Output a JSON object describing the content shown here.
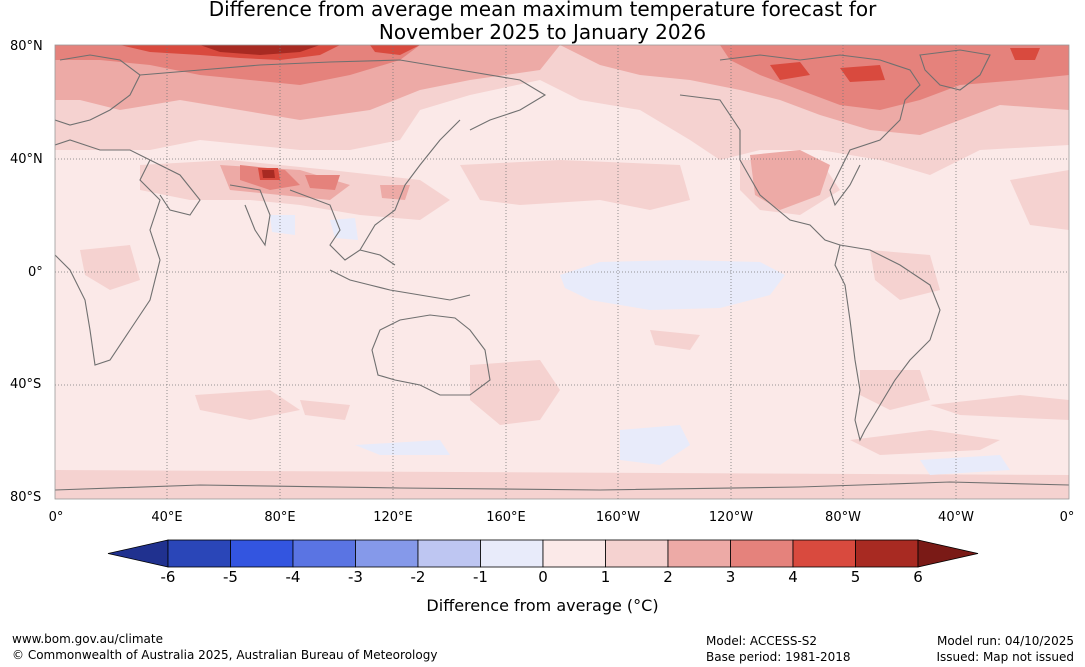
{
  "title": {
    "line1": "Difference from average mean maximum temperature forecast for",
    "line2": "November 2025 to January 2026"
  },
  "lat_labels": [
    "80°N",
    "40°N",
    "0°",
    "40°S",
    "80°S"
  ],
  "lon_labels": [
    "0°",
    "40°E",
    "80°E",
    "120°E",
    "160°E",
    "160°W",
    "120°W",
    "80°W",
    "40°W",
    "0°"
  ],
  "colorbar": {
    "ticks": [
      "-6",
      "-5",
      "-4",
      "-3",
      "-2",
      "-1",
      "0",
      "1",
      "2",
      "3",
      "4",
      "5",
      "6"
    ],
    "colors": [
      "#20318f",
      "#2a46b8",
      "#3355e0",
      "#5a74e3",
      "#8599ea",
      "#bec6f2",
      "#e8ebfa",
      "#fbe9e8",
      "#f5d2d0",
      "#edaaa6",
      "#e5827c",
      "#d94a3e",
      "#a82a22",
      "#7a1a16"
    ],
    "label": "Difference from average (°C)"
  },
  "footer": {
    "url": "www.bom.gov.au/climate",
    "copyright": "© Commonwealth of Australia 2025, Australian Bureau of Meteorology",
    "model": "Model: ACCESS-S2",
    "base_period": "Base period: 1981-2018",
    "model_run": "Model run: 04/10/2025",
    "issued": "Issued: Map not issued"
  },
  "colors": {
    "background": "#fbe9e8",
    "coast": "#707070",
    "grid": "#777777"
  }
}
